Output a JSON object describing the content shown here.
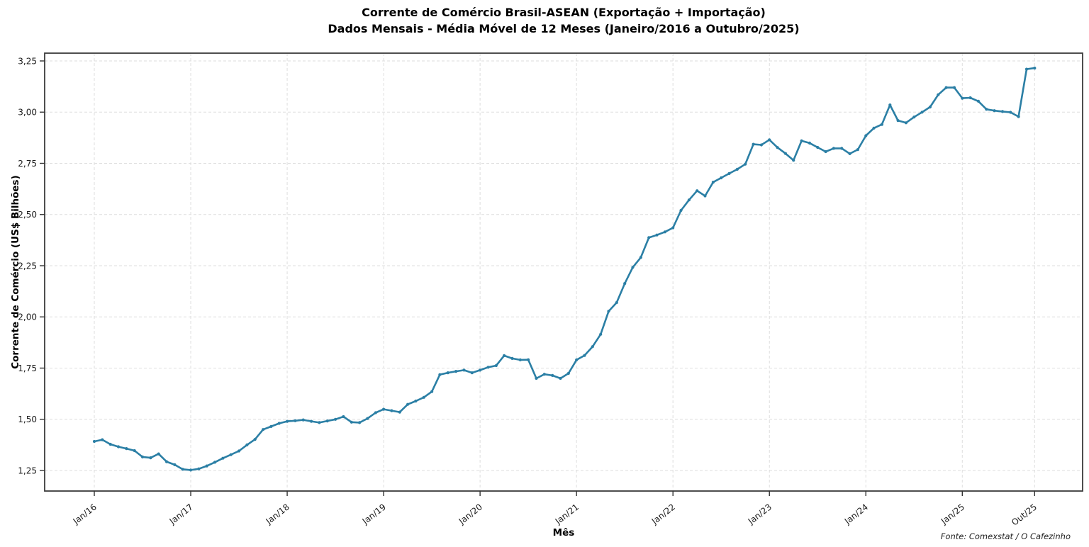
{
  "figure": {
    "title_line1": "Corrente de Comércio Brasil-ASEAN (Exportação + Importação)",
    "title_line2": "Dados Mensais - Média Móvel de 12 Meses (Janeiro/2016 a Outubro/2025)",
    "source_note": "Fonte: Comexstat / O Cafezinho"
  },
  "chart_data": {
    "type": "line",
    "title": "Corrente de Comércio Brasil-ASEAN (Exportação + Importação)",
    "subtitle": "Dados Mensais - Média Móvel de 12 Meses (Janeiro/2016 a Outubro/2025)",
    "xlabel": "Mês",
    "ylabel": "Corrente de Comércio (US$ Bilhões)",
    "legend": "none",
    "grid": "dashed, both axes",
    "markers": true,
    "line_color": "#2b7fa5",
    "ylim": [
      1.15,
      3.29
    ],
    "y_ticks": [
      1.25,
      1.5,
      1.75,
      2.0,
      2.25,
      2.5,
      2.75,
      3.0,
      3.25
    ],
    "y_tick_labels": [
      "1,25",
      "1,50",
      "1,75",
      "2,00",
      "2,25",
      "2,50",
      "2,75",
      "3,00",
      "3,25"
    ],
    "x_tick_labels": [
      "Jan/16",
      "Jan/17",
      "Jan/18",
      "Jan/19",
      "Jan/20",
      "Jan/21",
      "Jan/22",
      "Jan/23",
      "Jan/24",
      "Jan/25",
      "Out/25"
    ],
    "x_tick_indices": [
      0,
      12,
      24,
      36,
      48,
      60,
      72,
      84,
      96,
      108,
      117
    ],
    "x": [
      "Jan/16",
      "Fev/16",
      "Mar/16",
      "Abr/16",
      "Mai/16",
      "Jun/16",
      "Jul/16",
      "Ago/16",
      "Set/16",
      "Out/16",
      "Nov/16",
      "Dez/16",
      "Jan/17",
      "Fev/17",
      "Mar/17",
      "Abr/17",
      "Mai/17",
      "Jun/17",
      "Jul/17",
      "Ago/17",
      "Set/17",
      "Out/17",
      "Nov/17",
      "Dez/17",
      "Jan/18",
      "Fev/18",
      "Mar/18",
      "Abr/18",
      "Mai/18",
      "Jun/18",
      "Jul/18",
      "Ago/18",
      "Set/18",
      "Out/18",
      "Nov/18",
      "Dez/18",
      "Jan/19",
      "Fev/19",
      "Mar/19",
      "Abr/19",
      "Mai/19",
      "Jun/19",
      "Jul/19",
      "Ago/19",
      "Set/19",
      "Out/19",
      "Nov/19",
      "Dez/19",
      "Jan/20",
      "Fev/20",
      "Mar/20",
      "Abr/20",
      "Mai/20",
      "Jun/20",
      "Jul/20",
      "Ago/20",
      "Set/20",
      "Out/20",
      "Nov/20",
      "Dez/20",
      "Jan/21",
      "Fev/21",
      "Mar/21",
      "Abr/21",
      "Mai/21",
      "Jun/21",
      "Jul/21",
      "Ago/21",
      "Set/21",
      "Out/21",
      "Nov/21",
      "Dez/21",
      "Jan/22",
      "Fev/22",
      "Mar/22",
      "Abr/22",
      "Mai/22",
      "Jun/22",
      "Jul/22",
      "Ago/22",
      "Set/22",
      "Out/22",
      "Nov/22",
      "Dez/22",
      "Jan/23",
      "Fev/23",
      "Mar/23",
      "Abr/23",
      "Mai/23",
      "Jun/23",
      "Jul/23",
      "Ago/23",
      "Set/23",
      "Out/23",
      "Nov/23",
      "Dez/23",
      "Jan/24",
      "Fev/24",
      "Mar/24",
      "Abr/24",
      "Mai/24",
      "Jun/24",
      "Jul/24",
      "Ago/24",
      "Set/24",
      "Out/24",
      "Nov/24",
      "Dez/24",
      "Jan/25",
      "Fev/25",
      "Mar/25",
      "Abr/25",
      "Mai/25",
      "Jun/25",
      "Jul/25",
      "Ago/25",
      "Set/25",
      "Out/25"
    ],
    "values": [
      1.392,
      1.4,
      1.378,
      1.366,
      1.357,
      1.347,
      1.316,
      1.312,
      1.331,
      1.293,
      1.278,
      1.256,
      1.252,
      1.258,
      1.272,
      1.29,
      1.31,
      1.327,
      1.345,
      1.375,
      1.402,
      1.45,
      1.465,
      1.48,
      1.49,
      1.493,
      1.497,
      1.49,
      1.484,
      1.492,
      1.5,
      1.513,
      1.486,
      1.484,
      1.504,
      1.532,
      1.549,
      1.542,
      1.535,
      1.573,
      1.589,
      1.607,
      1.635,
      1.718,
      1.727,
      1.734,
      1.74,
      1.727,
      1.74,
      1.754,
      1.762,
      1.811,
      1.797,
      1.79,
      1.791,
      1.7,
      1.72,
      1.714,
      1.7,
      1.724,
      1.79,
      1.812,
      1.855,
      1.915,
      2.028,
      2.07,
      2.163,
      2.242,
      2.29,
      2.387,
      2.4,
      2.415,
      2.435,
      2.52,
      2.571,
      2.616,
      2.591,
      2.658,
      2.679,
      2.7,
      2.721,
      2.746,
      2.843,
      2.84,
      2.865,
      2.827,
      2.798,
      2.765,
      2.86,
      2.849,
      2.828,
      2.807,
      2.823,
      2.823,
      2.797,
      2.817,
      2.885,
      2.922,
      2.94,
      3.035,
      2.959,
      2.948,
      2.976,
      3.0,
      3.025,
      3.085,
      3.12,
      3.12,
      3.068,
      3.07,
      3.053,
      3.014,
      3.007,
      3.003,
      2.999,
      2.978,
      3.21,
      3.215
    ]
  }
}
